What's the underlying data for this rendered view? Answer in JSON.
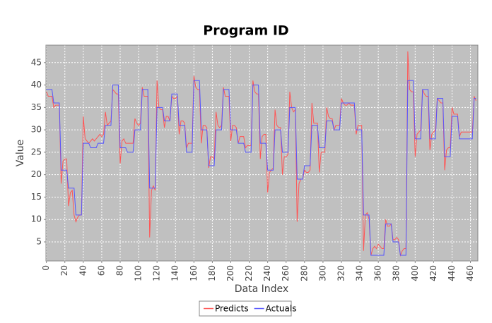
{
  "chart_data": {
    "type": "line",
    "title": "Program ID",
    "x_label": "Data Index",
    "y_label": "Value",
    "xlim": [
      -0.5,
      468
    ],
    "ylim": [
      0.75,
      48.9
    ],
    "xticks": [
      0,
      20,
      40,
      60,
      80,
      100,
      120,
      140,
      160,
      180,
      200,
      220,
      240,
      260,
      280,
      300,
      320,
      340,
      360,
      380,
      400,
      420,
      440,
      460
    ],
    "yticks": [
      5,
      10,
      15,
      20,
      25,
      30,
      35,
      40,
      45
    ],
    "grid": true,
    "legend": "bottom",
    "x": [
      0,
      2,
      4,
      6,
      8,
      10,
      12,
      14,
      16,
      18,
      20,
      22,
      24,
      26,
      28,
      30,
      32,
      34,
      36,
      38,
      40,
      42,
      44,
      46,
      48,
      50,
      52,
      54,
      56,
      58,
      60,
      62,
      64,
      66,
      68,
      70,
      72,
      74,
      76,
      78,
      80,
      82,
      84,
      86,
      88,
      90,
      92,
      94,
      96,
      98,
      100,
      102,
      104,
      106,
      108,
      110,
      112,
      114,
      116,
      118,
      120,
      122,
      124,
      126,
      128,
      130,
      132,
      134,
      136,
      138,
      140,
      142,
      144,
      146,
      148,
      150,
      152,
      154,
      156,
      158,
      160,
      162,
      164,
      166,
      168,
      170,
      172,
      174,
      176,
      178,
      180,
      182,
      184,
      186,
      188,
      190,
      192,
      194,
      196,
      198,
      200,
      202,
      204,
      206,
      208,
      210,
      212,
      214,
      216,
      218,
      220,
      222,
      224,
      226,
      228,
      230,
      232,
      234,
      236,
      238,
      240,
      242,
      244,
      246,
      248,
      250,
      252,
      254,
      256,
      258,
      260,
      262,
      264,
      266,
      268,
      270,
      272,
      274,
      276,
      278,
      280,
      282,
      284,
      286,
      288,
      290,
      292,
      294,
      296,
      298,
      300,
      302,
      304,
      306,
      308,
      310,
      312,
      314,
      316,
      318,
      320,
      322,
      324,
      326,
      328,
      330,
      332,
      334,
      336,
      338,
      340,
      342,
      344,
      346,
      348,
      350,
      352,
      354,
      356,
      358,
      360,
      362,
      364,
      366,
      368,
      370,
      372,
      374,
      376,
      378,
      380,
      382,
      384,
      386,
      388,
      390,
      392,
      394,
      396,
      398,
      400,
      402,
      404,
      406,
      408,
      410,
      412,
      414,
      416,
      418,
      420,
      422,
      424,
      426,
      428,
      430,
      432,
      434,
      436,
      438,
      440,
      442,
      444,
      446,
      448,
      450,
      452,
      454,
      456,
      458,
      460,
      462,
      464,
      466
    ],
    "series": [
      {
        "name": "Predicts",
        "color": "#ff5555",
        "values": [
          38.5,
          37.5,
          37.5,
          37.5,
          35,
          35.5,
          35.5,
          35.5,
          18,
          23,
          23.5,
          23.5,
          13,
          16,
          16.5,
          11,
          9.5,
          10.5,
          11,
          11,
          33,
          28,
          27.5,
          27,
          27.5,
          28,
          27.5,
          28,
          28.5,
          29,
          28.5,
          29,
          34,
          31,
          31.5,
          32,
          39,
          38.5,
          38,
          38,
          22.5,
          27.5,
          28,
          27,
          27,
          27,
          27,
          27,
          32.5,
          31.5,
          31,
          31.5,
          39.5,
          37.5,
          37.5,
          37.5,
          6,
          16.5,
          17.5,
          16.5,
          41,
          35,
          34.5,
          34.5,
          30.5,
          33,
          33,
          32,
          37.5,
          37,
          37,
          37.5,
          29,
          32,
          32,
          31.5,
          26,
          27,
          27,
          27,
          42,
          39.5,
          39,
          39,
          27,
          31,
          31,
          30.5,
          21.5,
          24,
          24,
          23.5,
          34,
          31,
          30.5,
          31,
          39.5,
          37.5,
          37.5,
          37.5,
          27.5,
          31,
          31,
          30.5,
          27,
          28.5,
          28.5,
          28.5,
          26,
          26.5,
          26.5,
          26.5,
          41,
          38.5,
          38,
          38,
          23.5,
          28.5,
          29,
          29,
          16,
          20.5,
          21,
          21.5,
          34.5,
          31,
          30.5,
          30.5,
          20,
          24,
          24,
          24.5,
          38.5,
          35,
          34,
          34.5,
          9.5,
          18,
          19,
          19,
          21,
          20.5,
          20.5,
          21,
          36,
          31.5,
          31.5,
          31.5,
          20.5,
          25,
          25,
          25,
          35,
          33,
          32.5,
          32.5,
          30,
          31,
          31,
          31,
          37,
          36,
          35.5,
          35.5,
          36,
          35.5,
          35.5,
          35.5,
          29,
          31,
          31,
          31,
          3,
          11,
          11.5,
          10,
          2,
          3.5,
          4,
          3.5,
          4.5,
          4,
          3.5,
          3.5,
          10,
          8.5,
          8.5,
          9,
          5.5,
          5.5,
          6,
          5.5,
          2,
          3,
          3.5,
          3.5,
          47.5,
          39,
          38.5,
          38.5,
          24,
          29,
          29.5,
          30,
          39,
          38,
          37.5,
          37.5,
          25.5,
          29,
          29.5,
          30,
          37,
          36.5,
          36,
          36,
          21,
          25.5,
          26,
          26,
          35,
          33.5,
          33.5,
          33.5,
          28.5,
          29.5,
          29.5,
          29.5,
          29.5,
          29.5,
          29.5,
          29.5,
          37.5,
          36.5
        ]
      },
      {
        "name": "Actuals",
        "color": "#5555ff",
        "values": [
          39,
          39,
          39,
          39,
          36,
          36,
          36,
          36,
          21,
          21,
          21,
          21,
          17,
          17,
          17,
          17,
          11,
          11,
          11,
          11,
          27,
          27,
          27,
          27,
          26,
          26,
          26,
          26,
          27,
          27,
          27,
          27,
          31,
          31,
          31,
          31,
          40,
          40,
          40,
          40,
          26,
          26,
          26,
          26,
          25,
          25,
          25,
          25,
          30,
          30,
          30,
          30,
          39,
          39,
          39,
          39,
          17,
          17,
          17,
          17,
          35,
          35,
          35,
          35,
          32,
          32,
          32,
          32,
          38,
          38,
          38,
          38,
          31,
          31,
          31,
          31,
          25,
          25,
          25,
          25,
          41,
          41,
          41,
          41,
          30,
          30,
          30,
          30,
          22,
          22,
          22,
          22,
          30,
          30,
          30,
          30,
          39,
          39,
          39,
          39,
          30,
          30,
          30,
          30,
          27,
          27,
          27,
          27,
          25,
          25,
          25,
          25,
          40,
          40,
          40,
          40,
          27,
          27,
          27,
          27,
          21,
          21,
          21,
          21,
          30,
          30,
          30,
          30,
          25,
          25,
          25,
          25,
          35,
          35,
          35,
          35,
          19,
          19,
          19,
          19,
          22,
          22,
          22,
          22,
          31,
          31,
          31,
          31,
          26,
          26,
          26,
          26,
          32,
          32,
          32,
          32,
          30,
          30,
          30,
          30,
          36,
          36,
          36,
          36,
          36,
          36,
          36,
          36,
          30,
          30,
          30,
          30,
          11,
          11,
          11,
          11,
          2,
          2,
          2,
          2,
          2,
          2,
          2,
          2,
          9,
          9,
          9,
          9,
          5,
          5,
          5,
          5,
          2,
          2,
          2,
          2,
          41,
          41,
          41,
          41,
          28,
          28,
          28,
          28,
          39,
          39,
          39,
          39,
          28,
          28,
          28,
          28,
          37,
          37,
          37,
          37,
          24,
          24,
          24,
          24,
          33,
          33,
          33,
          33,
          28,
          28,
          28,
          28,
          28,
          28,
          28,
          28,
          37,
          37
        ]
      }
    ]
  }
}
